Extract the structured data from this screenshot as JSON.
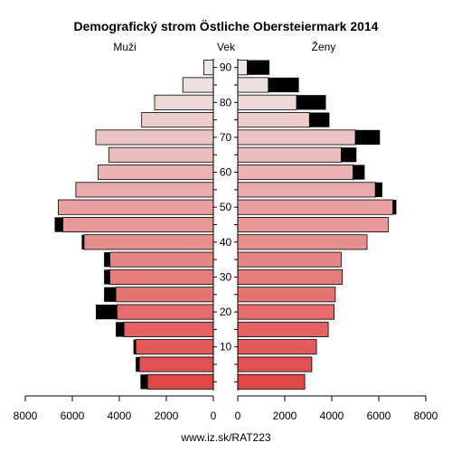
{
  "chart_data": {
    "type": "bar",
    "title": "Demografický strom Östliche Obersteiermark 2014",
    "left_label": "Muži",
    "center_label": "Vek",
    "right_label": "Ženy",
    "age_ticks": [
      "10",
      "20",
      "30",
      "40",
      "50",
      "60",
      "70",
      "80",
      "90"
    ],
    "left_axis_ticks": [
      "8000",
      "6000",
      "4000",
      "2000",
      "0"
    ],
    "right_axis_ticks": [
      "0",
      "2000",
      "4000",
      "6000",
      "8000"
    ],
    "xlim": [
      0,
      8000
    ],
    "age_groups": [
      "0-4",
      "5-9",
      "10-14",
      "15-19",
      "20-24",
      "25-29",
      "30-34",
      "35-39",
      "40-44",
      "45-49",
      "50-54",
      "55-59",
      "60-64",
      "65-69",
      "70-74",
      "75-79",
      "80-84",
      "85-89",
      "90+"
    ],
    "series": [
      {
        "name": "Muži",
        "values": [
          2800,
          3150,
          3300,
          3800,
          4100,
          4150,
          4400,
          4400,
          5500,
          6400,
          6600,
          5850,
          4900,
          4450,
          5000,
          3050,
          2500,
          1300,
          400
        ]
      },
      {
        "name": "Muži surplus",
        "values": [
          300,
          150,
          100,
          350,
          900,
          500,
          250,
          250,
          100,
          350,
          0,
          0,
          0,
          0,
          0,
          0,
          0,
          0,
          0
        ]
      },
      {
        "name": "Ženy",
        "values": [
          2850,
          3150,
          3350,
          3850,
          4100,
          4150,
          4450,
          4400,
          5500,
          6400,
          6600,
          5850,
          4900,
          4400,
          5000,
          3050,
          2500,
          1300,
          400
        ]
      },
      {
        "name": "Ženy surplus",
        "values": [
          0,
          0,
          0,
          0,
          0,
          0,
          0,
          0,
          0,
          0,
          150,
          300,
          500,
          650,
          1050,
          850,
          1250,
          1300,
          950
        ]
      }
    ],
    "colors": {
      "young": "#e04848",
      "old": "#ede8e8",
      "surplus": "#000000",
      "frame": "#000000"
    },
    "footer": "www.iz.sk/RAT223"
  }
}
